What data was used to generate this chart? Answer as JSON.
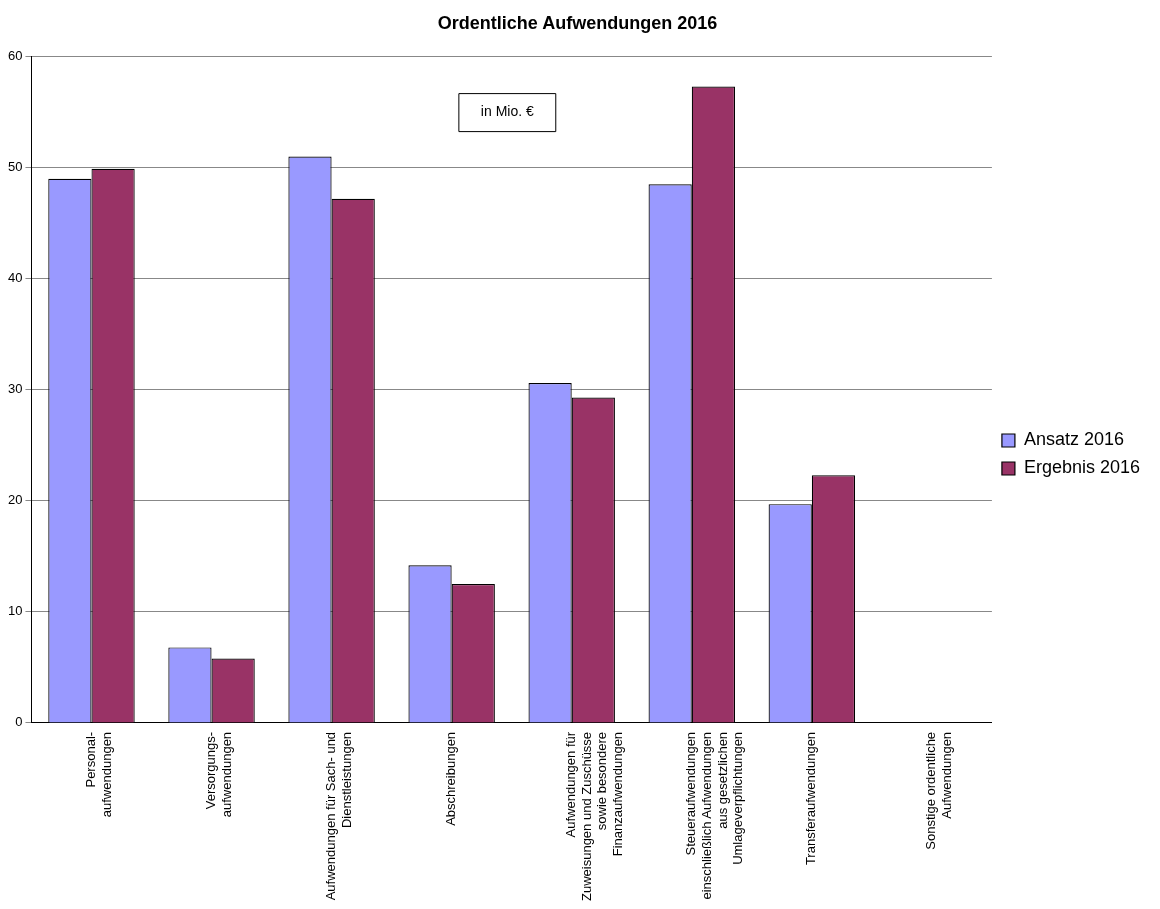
{
  "chart_data": {
    "type": "bar",
    "title": "Ordentliche Aufwendungen 2016",
    "categories": [
      "Personal-\naufwendungen",
      "Versorgungs-\naufwendungen",
      "Aufwendungen für Sach- und\nDienstleistungen",
      "Abschreibungen",
      "Aufwendungen für\nZuweisungen und Zuschüsse\nsowie besondere\nFinanzaufwendungen",
      "Steueraufwendungen\neinschließlich Aufwendungen\naus gesetzlichen\nUmlageverpflichtungen",
      "Transferaufwendungen",
      "Sonstige ordentliche\nAufwendungen"
    ],
    "series": [
      {
        "name": "Ansatz 2016",
        "color": "#9999ff",
        "values": [
          49.0,
          6.8,
          51.0,
          14.2,
          30.6,
          48.5,
          19.7,
          0
        ]
      },
      {
        "name": "Ergebnis 2016",
        "color": "#993366",
        "values": [
          49.9,
          5.8,
          47.2,
          12.5,
          29.3,
          57.3,
          22.3,
          0
        ]
      }
    ],
    "ylim": [
      0,
      60
    ],
    "yticks": [
      0,
      10,
      20,
      30,
      40,
      50,
      60
    ],
    "grid": "y",
    "legend": "right",
    "annotations": [
      "in Mio. €"
    ]
  }
}
